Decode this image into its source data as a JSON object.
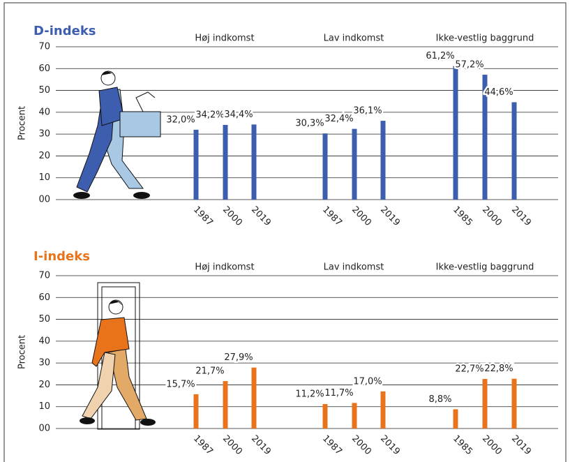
{
  "chart_data": [
    {
      "type": "bar",
      "title": "D-indeks",
      "ylabel": "Procent",
      "color": "#3d5eae",
      "ylim": [
        0,
        70
      ],
      "yticks": [
        {
          "value": 0,
          "label": "00"
        },
        10,
        20,
        30,
        40,
        50,
        60,
        70
      ],
      "grid": true,
      "groups": [
        {
          "name": "Høj indkomst",
          "categories": [
            "1987",
            "2000",
            "2019"
          ],
          "values": [
            32.0,
            34.2,
            34.4
          ],
          "value_labels": [
            "32,0%",
            "34,2%",
            "34,4%"
          ]
        },
        {
          "name": "Lav indkomst",
          "categories": [
            "1987",
            "2000",
            "2019"
          ],
          "values": [
            30.3,
            32.4,
            36.1
          ],
          "value_labels": [
            "30,3%",
            "32,4%",
            "36,1%"
          ]
        },
        {
          "name": "Ikke-vestlig baggrund",
          "categories": [
            "1985",
            "2000",
            "2019"
          ],
          "values": [
            61.2,
            57.2,
            44.6
          ],
          "value_labels": [
            "61,2%",
            "57,2%",
            "44,6%"
          ]
        }
      ]
    },
    {
      "type": "bar",
      "title": "I-indeks",
      "ylabel": "Procent",
      "color": "#e8731a",
      "ylim": [
        0,
        70
      ],
      "yticks": [
        {
          "value": 0,
          "label": "00"
        },
        10,
        20,
        30,
        40,
        50,
        60,
        70
      ],
      "grid": true,
      "groups": [
        {
          "name": "Høj indkomst",
          "categories": [
            "1987",
            "2000",
            "2019"
          ],
          "values": [
            15.7,
            21.7,
            27.9
          ],
          "value_labels": [
            "15,7%",
            "21,7%",
            "27,9%"
          ]
        },
        {
          "name": "Lav indkomst",
          "categories": [
            "1987",
            "2000",
            "2019"
          ],
          "values": [
            11.2,
            11.7,
            17.0
          ],
          "value_labels": [
            "11,2%",
            "11,7%",
            "17,0%"
          ]
        },
        {
          "name": "Ikke-vestlig baggrund",
          "categories": [
            "1985",
            "2000",
            "2019"
          ],
          "values": [
            8.8,
            22.7,
            22.8
          ],
          "value_labels": [
            "8,8%",
            "22,7%",
            "22,8%"
          ]
        }
      ]
    }
  ]
}
